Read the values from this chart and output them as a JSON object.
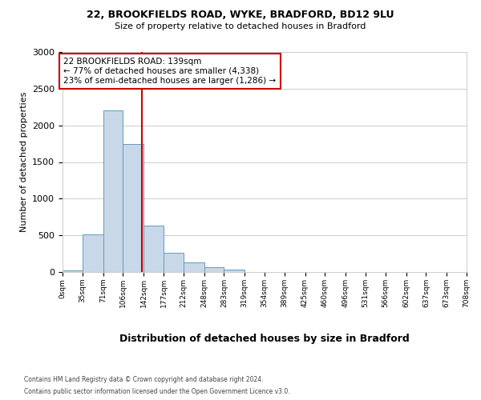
{
  "title1": "22, BROOKFIELDS ROAD, WYKE, BRADFORD, BD12 9LU",
  "title2": "Size of property relative to detached houses in Bradford",
  "xlabel": "Distribution of detached houses by size in Bradford",
  "ylabel": "Number of detached properties",
  "bin_edges": [
    0,
    35,
    71,
    106,
    142,
    177,
    212,
    248,
    283,
    319,
    354,
    389,
    425,
    460,
    496,
    531,
    566,
    602,
    637,
    673,
    708
  ],
  "bar_heights": [
    20,
    510,
    2200,
    1750,
    635,
    260,
    130,
    70,
    30,
    5,
    5,
    0,
    0,
    0,
    0,
    0,
    0,
    0,
    0,
    0
  ],
  "bar_facecolor": "#c8d8e8",
  "bar_edgecolor": "#6699bb",
  "vline_x": 139,
  "vline_color": "#cc0000",
  "ylim": [
    0,
    3000
  ],
  "yticks": [
    0,
    500,
    1000,
    1500,
    2000,
    2500,
    3000
  ],
  "annotation_line1": "22 BROOKFIELDS ROAD: 139sqm",
  "annotation_line2": "← 77% of detached houses are smaller (4,338)",
  "annotation_line3": "23% of semi-detached houses are larger (1,286) →",
  "annotation_box_color": "#cc0000",
  "footer1": "Contains HM Land Registry data © Crown copyright and database right 2024.",
  "footer2": "Contains public sector information licensed under the Open Government Licence v3.0.",
  "bg_color": "#ffffff",
  "grid_color": "#cccccc"
}
